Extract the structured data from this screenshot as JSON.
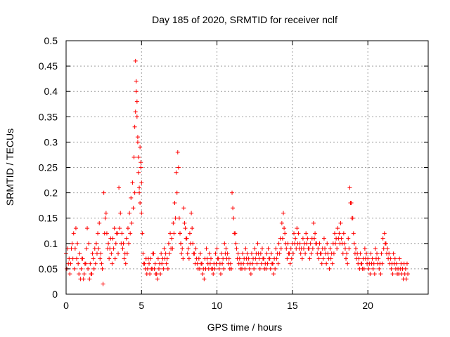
{
  "chart_data": {
    "type": "scatter",
    "title": "Day 185 of 2020, SRMTID for receiver nclf",
    "xlabel": "GPS time / hours",
    "ylabel": "SRMTID / TECUs",
    "xlim": [
      0,
      24
    ],
    "ylim": [
      0,
      0.5
    ],
    "x_ticks": [
      0,
      5,
      10,
      15,
      20
    ],
    "y_ticks": [
      0,
      0.05,
      0.1,
      0.15,
      0.2,
      0.25,
      0.3,
      0.35,
      0.4,
      0.45,
      0.5
    ],
    "x_tick_labels": [
      "0",
      "5",
      "10",
      "15",
      "20"
    ],
    "y_tick_labels": [
      "0",
      "0.05",
      "0.1",
      "0.15",
      "0.2",
      "0.25",
      "0.3",
      "0.35",
      "0.4",
      "0.45",
      "0.5"
    ],
    "grid": true,
    "marker": "plus",
    "color": "#ff0000",
    "series": [
      {
        "x": [
          0.0,
          0.1,
          0.2,
          0.3,
          0.4,
          0.5,
          0.6,
          0.7,
          0.8,
          0.9,
          1.0,
          1.1,
          1.2,
          1.3,
          1.4,
          1.5,
          1.6,
          1.7,
          1.8,
          1.9,
          2.0,
          2.1,
          2.2,
          2.3,
          2.4,
          2.5,
          2.6,
          2.7,
          2.8,
          2.9,
          3.0,
          3.1,
          3.2,
          3.3,
          3.4,
          3.5,
          3.6,
          3.7,
          3.8,
          3.9,
          4.0,
          4.1,
          4.2,
          4.3,
          4.4,
          4.5,
          4.55,
          4.6,
          4.65,
          4.7,
          4.75,
          4.8,
          4.85,
          4.9,
          4.95,
          5.0,
          5.1,
          5.2,
          5.3,
          5.4,
          5.5,
          5.6,
          5.7,
          5.8,
          5.9,
          6.0,
          6.1,
          6.2,
          6.3,
          6.4,
          6.5,
          6.6,
          6.7,
          6.8,
          6.9,
          7.0,
          7.1,
          7.2,
          7.3,
          7.4,
          7.5,
          7.55,
          7.6,
          7.7,
          7.8,
          7.9,
          8.0,
          8.1,
          8.2,
          8.3,
          8.4,
          8.5,
          8.6,
          8.7,
          8.8,
          8.9,
          9.0,
          9.1,
          9.2,
          9.3,
          9.4,
          9.5,
          9.6,
          9.7,
          9.8,
          9.9,
          10.0,
          10.1,
          10.2,
          10.3,
          10.4,
          10.5,
          10.6,
          10.7,
          10.8,
          10.9,
          11.0,
          11.1,
          11.2,
          11.3,
          11.4,
          11.5,
          11.6,
          11.7,
          11.8,
          11.9,
          12.0,
          12.1,
          12.2,
          12.3,
          12.4,
          12.5,
          12.6,
          12.7,
          12.8,
          12.9,
          13.0,
          13.1,
          13.2,
          13.3,
          13.4,
          13.5,
          13.6,
          13.7,
          13.8,
          13.9,
          14.0,
          14.1,
          14.2,
          14.3,
          14.4,
          14.5,
          14.6,
          14.7,
          14.8,
          14.9,
          15.0,
          15.1,
          15.2,
          15.3,
          15.4,
          15.5,
          15.6,
          15.7,
          15.8,
          15.9,
          16.0,
          16.1,
          16.2,
          16.3,
          16.4,
          16.5,
          16.6,
          16.7,
          16.8,
          16.9,
          17.0,
          17.1,
          17.2,
          17.3,
          17.4,
          17.5,
          17.6,
          17.7,
          17.8,
          17.9,
          18.0,
          18.1,
          18.2,
          18.3,
          18.4,
          18.5,
          18.6,
          18.7,
          18.8,
          18.9,
          19.0,
          19.1,
          19.2,
          19.3,
          19.4,
          19.5,
          19.6,
          19.7,
          19.8,
          19.9,
          20.0,
          20.1,
          20.2,
          20.3,
          20.4,
          20.5,
          20.6,
          20.7,
          20.8,
          20.9,
          21.0,
          21.1,
          21.2,
          21.3,
          21.4,
          21.5,
          21.6,
          21.7,
          21.8,
          21.9,
          22.0,
          22.1,
          22.2,
          22.3,
          22.4,
          22.5,
          22.6
        ],
        "y": [
          0.08,
          0.09,
          0.07,
          0.06,
          0.1,
          0.12,
          0.09,
          0.07,
          0.06,
          0.08,
          0.05,
          0.07,
          0.04,
          0.06,
          0.13,
          0.1,
          0.06,
          0.04,
          0.07,
          0.09,
          0.1,
          0.12,
          0.14,
          0.08,
          0.05,
          0.2,
          0.15,
          0.12,
          0.1,
          0.09,
          0.08,
          0.11,
          0.13,
          0.1,
          0.12,
          0.21,
          0.16,
          0.12,
          0.1,
          0.08,
          0.11,
          0.13,
          0.16,
          0.19,
          0.22,
          0.27,
          0.33,
          0.46,
          0.42,
          0.38,
          0.3,
          0.24,
          0.2,
          0.29,
          0.25,
          0.16,
          0.08,
          0.06,
          0.07,
          0.05,
          0.06,
          0.07,
          0.05,
          0.08,
          0.06,
          0.04,
          0.07,
          0.06,
          0.08,
          0.07,
          0.09,
          0.08,
          0.07,
          0.1,
          0.12,
          0.11,
          0.14,
          0.18,
          0.24,
          0.28,
          0.15,
          0.12,
          0.1,
          0.09,
          0.17,
          0.13,
          0.11,
          0.09,
          0.12,
          0.16,
          0.1,
          0.08,
          0.09,
          0.06,
          0.07,
          0.08,
          0.06,
          0.05,
          0.07,
          0.09,
          0.06,
          0.08,
          0.07,
          0.05,
          0.06,
          0.08,
          0.09,
          0.07,
          0.06,
          0.08,
          0.07,
          0.1,
          0.09,
          0.08,
          0.07,
          0.06,
          0.2,
          0.15,
          0.12,
          0.09,
          0.08,
          0.07,
          0.06,
          0.08,
          0.07,
          0.09,
          0.08,
          0.07,
          0.06,
          0.08,
          0.07,
          0.09,
          0.08,
          0.1,
          0.07,
          0.08,
          0.09,
          0.07,
          0.06,
          0.08,
          0.09,
          0.07,
          0.08,
          0.06,
          0.07,
          0.09,
          0.08,
          0.1,
          0.11,
          0.14,
          0.16,
          0.12,
          0.09,
          0.1,
          0.08,
          0.09,
          0.1,
          0.12,
          0.11,
          0.13,
          0.12,
          0.1,
          0.09,
          0.11,
          0.1,
          0.12,
          0.11,
          0.09,
          0.1,
          0.11,
          0.14,
          0.12,
          0.1,
          0.09,
          0.1,
          0.08,
          0.09,
          0.11,
          0.08,
          0.1,
          0.07,
          0.09,
          0.08,
          0.1,
          0.12,
          0.11,
          0.13,
          0.12,
          0.14,
          0.1,
          0.12,
          0.09,
          0.08,
          0.11,
          0.21,
          0.18,
          0.15,
          0.1,
          0.09,
          0.08,
          0.07,
          0.08,
          0.06,
          0.07,
          0.09,
          0.08,
          0.07,
          0.06,
          0.08,
          0.07,
          0.06,
          0.09,
          0.08,
          0.07,
          0.06,
          0.08,
          0.11,
          0.12,
          0.1,
          0.09,
          0.08,
          0.07,
          0.06,
          0.08,
          0.07,
          0.06,
          0.05,
          0.07,
          0.06,
          0.05,
          0.06,
          0.05,
          0.06
        ],
        "y2": [
          0.05,
          0.06,
          0.04,
          0.09,
          0.07,
          0.05,
          0.13,
          0.1,
          0.04,
          0.03,
          0.07,
          0.03,
          0.06,
          0.09,
          0.05,
          0.03,
          0.04,
          0.08,
          0.05,
          0.06,
          0.08,
          0.09,
          0.07,
          0.06,
          0.02,
          0.12,
          0.16,
          0.09,
          0.07,
          0.11,
          0.06,
          0.09,
          0.07,
          0.12,
          0.08,
          0.13,
          0.1,
          0.09,
          0.07,
          0.06,
          0.08,
          0.1,
          0.12,
          0.14,
          0.17,
          0.2,
          0.36,
          0.4,
          0.35,
          0.31,
          0.27,
          0.21,
          0.18,
          0.26,
          0.22,
          0.12,
          0.06,
          0.05,
          0.04,
          0.07,
          0.04,
          0.05,
          0.08,
          0.05,
          0.04,
          0.03,
          0.05,
          0.04,
          0.06,
          0.05,
          0.07,
          0.06,
          0.05,
          0.08,
          0.09,
          0.09,
          0.12,
          0.15,
          0.2,
          0.25,
          0.12,
          0.1,
          0.08,
          0.07,
          0.14,
          0.11,
          0.08,
          0.07,
          0.1,
          0.13,
          0.08,
          0.06,
          0.07,
          0.05,
          0.05,
          0.06,
          0.04,
          0.03,
          0.05,
          0.07,
          0.05,
          0.06,
          0.05,
          0.04,
          0.05,
          0.06,
          0.07,
          0.05,
          0.04,
          0.06,
          0.05,
          0.08,
          0.07,
          0.06,
          0.05,
          0.05,
          0.17,
          0.12,
          0.1,
          0.07,
          0.06,
          0.05,
          0.05,
          0.06,
          0.05,
          0.07,
          0.06,
          0.05,
          0.04,
          0.06,
          0.05,
          0.07,
          0.06,
          0.08,
          0.05,
          0.06,
          0.07,
          0.05,
          0.05,
          0.06,
          0.07,
          0.05,
          0.06,
          0.04,
          0.05,
          0.07,
          0.06,
          0.08,
          0.09,
          0.11,
          0.13,
          0.1,
          0.07,
          0.08,
          0.06,
          0.07,
          0.08,
          0.1,
          0.09,
          0.1,
          0.09,
          0.08,
          0.07,
          0.09,
          0.08,
          0.1,
          0.09,
          0.07,
          0.08,
          0.09,
          0.11,
          0.1,
          0.08,
          0.07,
          0.08,
          0.06,
          0.07,
          0.09,
          0.06,
          0.08,
          0.05,
          0.07,
          0.06,
          0.08,
          0.1,
          0.09,
          0.11,
          0.1,
          0.11,
          0.08,
          0.1,
          0.07,
          0.06,
          0.09,
          0.18,
          0.15,
          0.12,
          0.08,
          0.07,
          0.06,
          0.05,
          0.06,
          0.05,
          0.05,
          0.07,
          0.06,
          0.05,
          0.04,
          0.06,
          0.05,
          0.04,
          0.07,
          0.06,
          0.05,
          0.04,
          0.06,
          0.09,
          0.1,
          0.08,
          0.07,
          0.06,
          0.05,
          0.04,
          0.06,
          0.05,
          0.04,
          0.04,
          0.05,
          0.04,
          0.03,
          0.04,
          0.03,
          0.04
        ]
      }
    ]
  }
}
